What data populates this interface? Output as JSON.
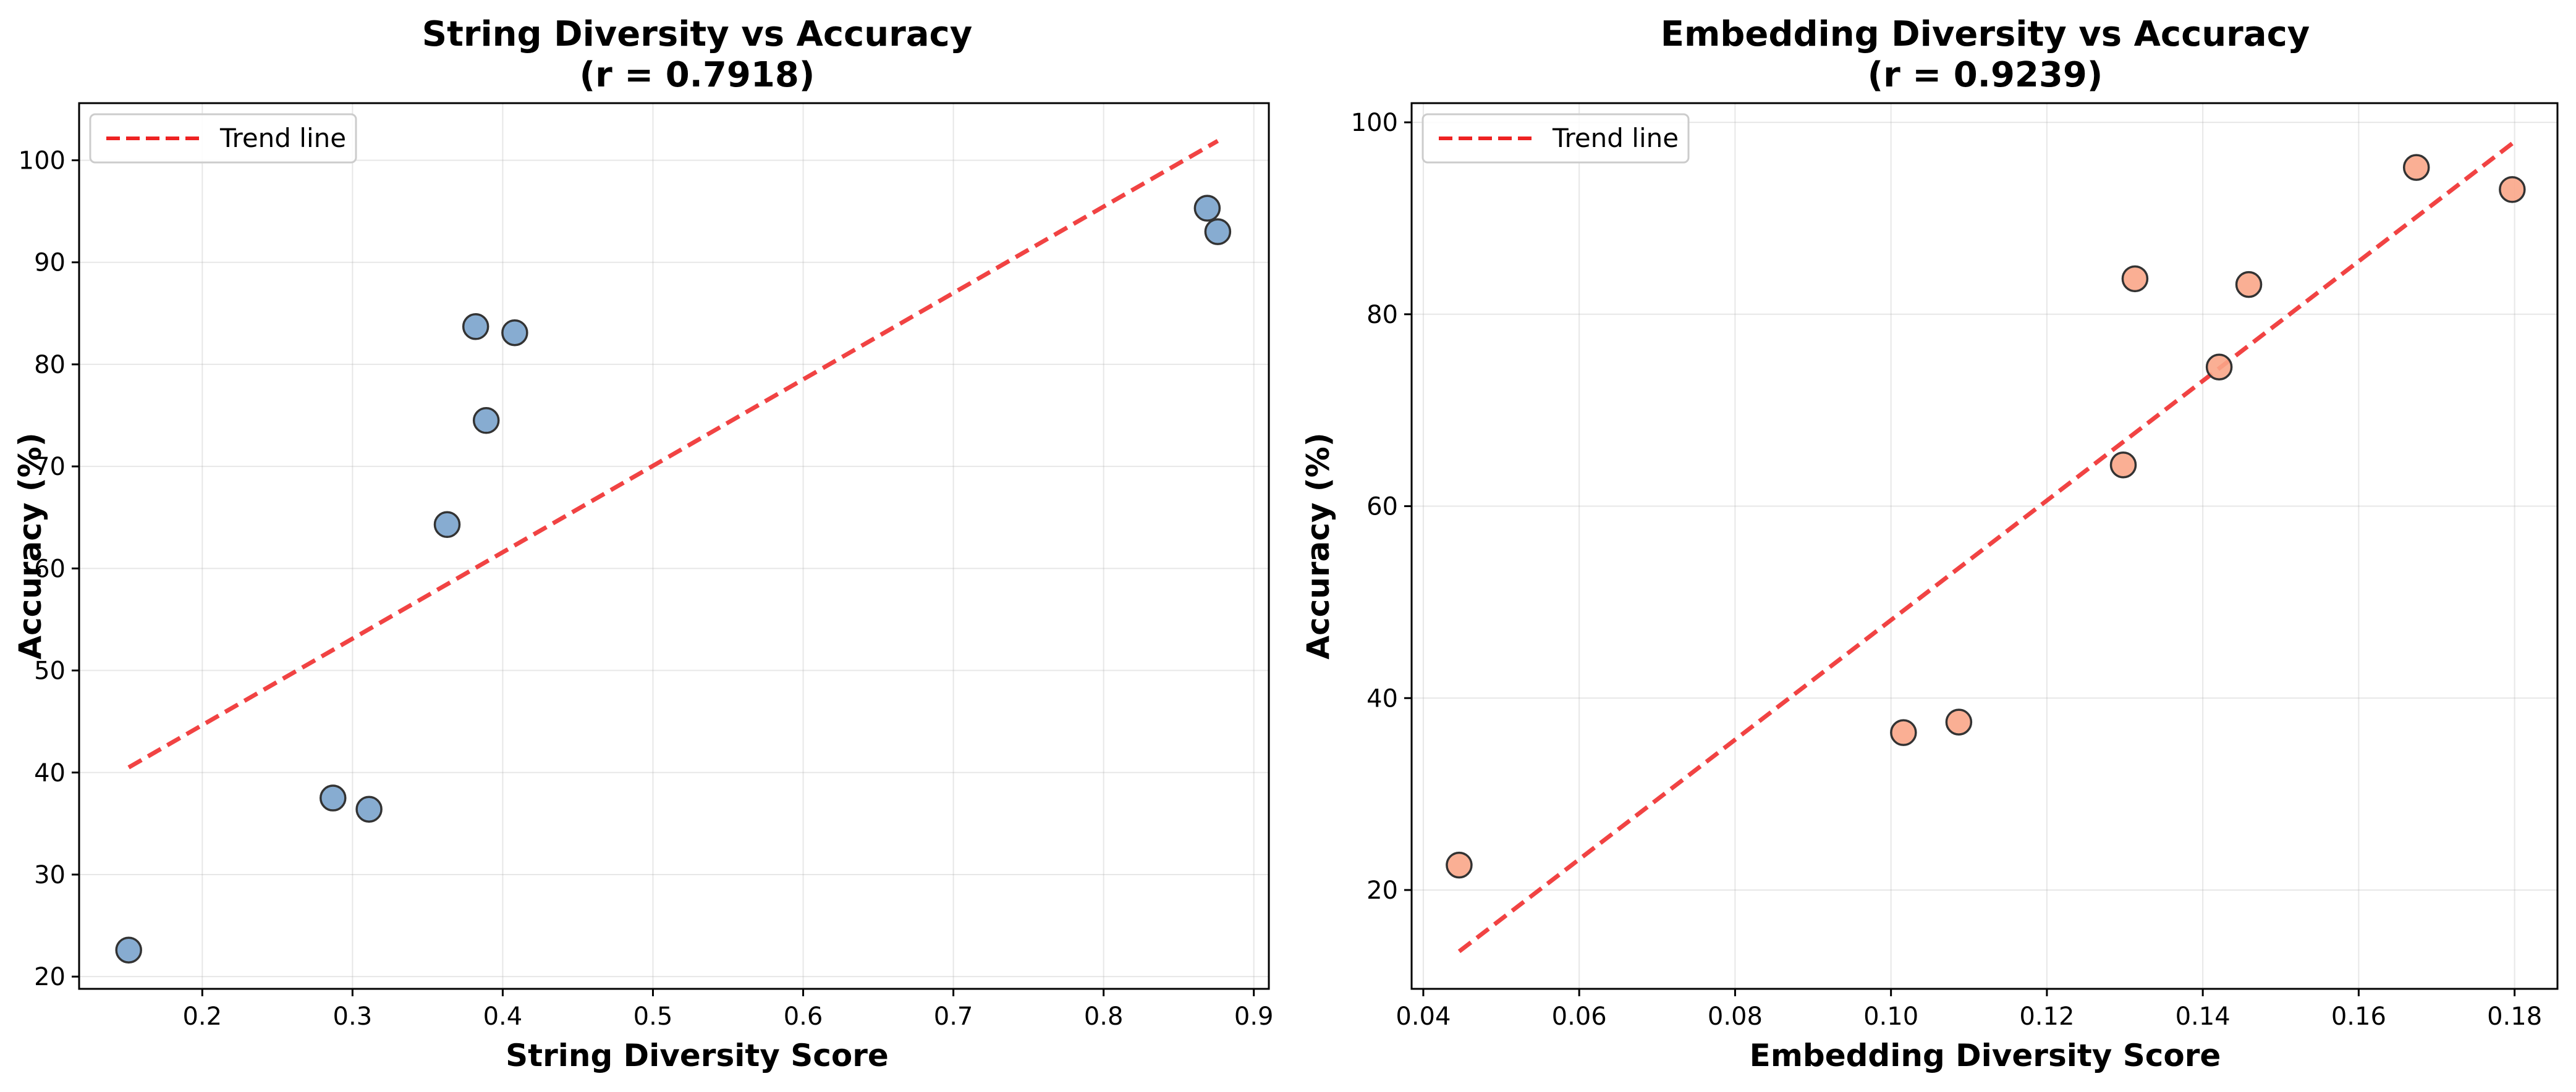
{
  "chart_data": [
    {
      "type": "scatter",
      "title": "String Diversity vs Accuracy",
      "subtitle": "(r = 0.7918)",
      "xlabel": "String Diversity Score",
      "ylabel": "Accuracy (%)",
      "xlim": [
        0.118,
        0.91
      ],
      "ylim": [
        18.8,
        105.6
      ],
      "xticks": [
        0.2,
        0.3,
        0.4,
        0.5,
        0.6,
        0.7,
        0.8,
        0.9
      ],
      "xtick_labels": [
        "0.2",
        "0.3",
        "0.4",
        "0.5",
        "0.6",
        "0.7",
        "0.8",
        "0.9"
      ],
      "yticks": [
        20,
        30,
        40,
        50,
        60,
        70,
        80,
        90,
        100
      ],
      "ytick_labels": [
        "20",
        "30",
        "40",
        "50",
        "60",
        "70",
        "80",
        "90",
        "100"
      ],
      "grid": true,
      "legend": {
        "position": "top-left",
        "entries": [
          "Trend line"
        ]
      },
      "points": [
        {
          "x": 0.151,
          "y": 22.6
        },
        {
          "x": 0.287,
          "y": 37.5
        },
        {
          "x": 0.311,
          "y": 36.4
        },
        {
          "x": 0.363,
          "y": 64.3
        },
        {
          "x": 0.382,
          "y": 83.7
        },
        {
          "x": 0.389,
          "y": 74.5
        },
        {
          "x": 0.408,
          "y": 83.1
        },
        {
          "x": 0.869,
          "y": 95.3
        },
        {
          "x": 0.876,
          "y": 93.0
        }
      ],
      "trend_line": {
        "x": [
          0.151,
          0.876
        ],
        "y": [
          40.5,
          101.9
        ]
      },
      "point_color": "#7aa3cc",
      "trend_color": "#ee2222"
    },
    {
      "type": "scatter",
      "title": "Embedding Diversity vs Accuracy",
      "subtitle": "(r = 0.9239)",
      "xlabel": "Embedding Diversity Score",
      "ylabel": "Accuracy (%)",
      "xlim": [
        0.0385,
        0.1855
      ],
      "ylim": [
        9.7,
        102.0
      ],
      "xticks": [
        0.04,
        0.06,
        0.08,
        0.1,
        0.12,
        0.14,
        0.16,
        0.18
      ],
      "xtick_labels": [
        "0.04",
        "0.06",
        "0.08",
        "0.10",
        "0.12",
        "0.14",
        "0.16",
        "0.18"
      ],
      "yticks": [
        20,
        40,
        60,
        80,
        100
      ],
      "ytick_labels": [
        "20",
        "40",
        "60",
        "80",
        "100"
      ],
      "grid": true,
      "legend": {
        "position": "top-left",
        "entries": [
          "Trend line"
        ]
      },
      "points": [
        {
          "x": 0.0446,
          "y": 22.6
        },
        {
          "x": 0.1016,
          "y": 36.4
        },
        {
          "x": 0.1087,
          "y": 37.5
        },
        {
          "x": 0.1298,
          "y": 64.3
        },
        {
          "x": 0.1313,
          "y": 83.7
        },
        {
          "x": 0.1421,
          "y": 74.5
        },
        {
          "x": 0.1459,
          "y": 83.1
        },
        {
          "x": 0.1674,
          "y": 95.3
        },
        {
          "x": 0.1797,
          "y": 93.0
        }
      ],
      "trend_line": {
        "x": [
          0.0446,
          0.1797
        ],
        "y": [
          13.6,
          97.8
        ]
      },
      "point_color": "#f9a688",
      "trend_color": "#ee2222"
    }
  ]
}
